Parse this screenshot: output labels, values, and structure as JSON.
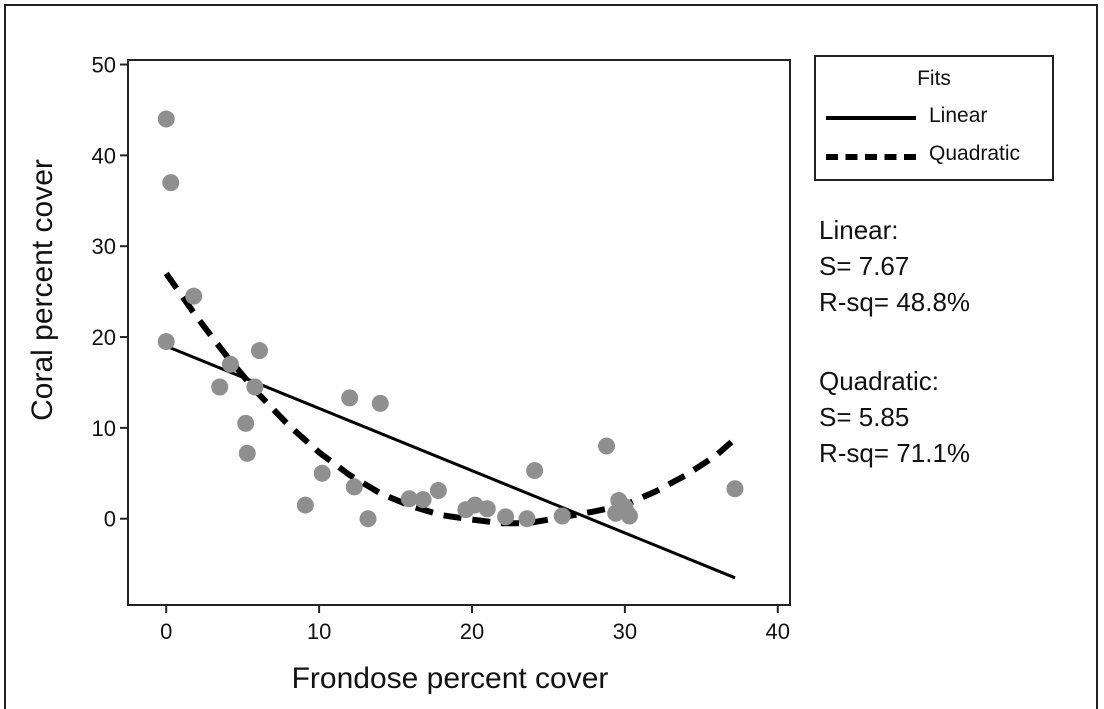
{
  "chart_data": {
    "type": "scatter",
    "xlabel": "Frondose percent cover",
    "ylabel": "Coral percent cover",
    "xlim": [
      -2.5,
      40.8
    ],
    "ylim": [
      -9.5,
      50.5
    ],
    "x_ticks": [
      0,
      10,
      20,
      30,
      40
    ],
    "y_ticks": [
      0,
      10,
      20,
      30,
      40,
      50
    ],
    "grid": false,
    "legend_placement": "right",
    "points": {
      "color": "#8f8f8f",
      "x": [
        0,
        0.3,
        0,
        1.8,
        3.5,
        4.2,
        5.2,
        5.3,
        5.8,
        6.1,
        9.1,
        10.2,
        12.0,
        12.3,
        13.2,
        14.0,
        15.9,
        16.8,
        17.8,
        19.6,
        20.2,
        21.0,
        22.2,
        23.6,
        24.1,
        25.9,
        28.8,
        29.4,
        29.6,
        30.0,
        30.2,
        30.3,
        37.2
      ],
      "y": [
        44,
        37,
        19.5,
        24.5,
        14.5,
        17,
        10.5,
        7.2,
        14.5,
        18.5,
        1.5,
        5,
        13.3,
        3.5,
        0,
        12.7,
        2.2,
        2.1,
        3.1,
        1,
        1.5,
        1.1,
        0.2,
        0,
        5.3,
        0.3,
        8,
        0.6,
        2,
        1.3,
        0.5,
        0.3,
        3.3
      ]
    },
    "series": [
      {
        "name": "Linear",
        "style": "solid",
        "x": [
          0,
          37.2
        ],
        "y": [
          19,
          -6.5
        ]
      },
      {
        "name": "Quadratic",
        "style": "dashed",
        "x": [
          0,
          2,
          4,
          6,
          8,
          10,
          12,
          14,
          16,
          18,
          20,
          22,
          23.5,
          24,
          26,
          28,
          30,
          32,
          34,
          36,
          37.2
        ],
        "y": [
          27,
          22.2,
          17.8,
          13.8,
          10.3,
          7.3,
          4.8,
          2.8,
          1.4,
          0.4,
          -0.1,
          -0.5,
          -0.5,
          -0.4,
          0.2,
          0.8,
          1.5,
          3.0,
          4.8,
          7.0,
          8.8
        ]
      }
    ],
    "legend": {
      "title": "Fits",
      "entries": [
        "Linear",
        "Quadratic"
      ]
    },
    "annotations": {
      "linear": [
        "Linear:",
        "S= 7.67",
        "R-sq= 48.8%"
      ],
      "quadratic": [
        "Quadratic:",
        "S= 5.85",
        "R-sq= 71.1%"
      ]
    }
  }
}
